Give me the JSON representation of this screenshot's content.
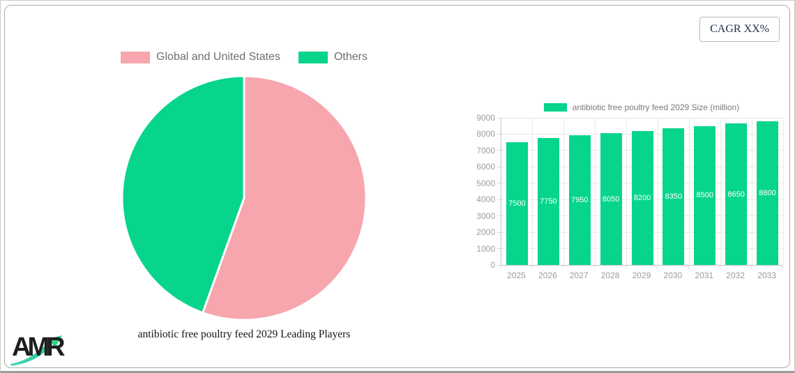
{
  "header": {
    "cagr_label": "CAGR XX%"
  },
  "logo": {
    "text": "AMR"
  },
  "colors": {
    "pink": "#F7A6AE",
    "green": "#07D58B",
    "grid": "#e9e9e9",
    "axis": "#c2c2c2",
    "tick_text": "#9c9c9c",
    "legend_text": "#6e6e6e"
  },
  "chart_data": [
    {
      "type": "pie",
      "title": "antibiotic free poultry feed 2029 Leading Players",
      "labels": [
        "Global and United States",
        "Others"
      ],
      "values": [
        55.5,
        44.5
      ],
      "values_note": "percent share estimated from slice angles",
      "colors": [
        "#F7A6AE",
        "#07D58B"
      ],
      "legend_position": "top",
      "start_angle_deg": 0,
      "slice_border_color": "#ffffff"
    },
    {
      "type": "bar",
      "legend_label": "antibiotic free poultry feed 2029 Size (million)",
      "categories": [
        "2025",
        "2026",
        "2027",
        "2028",
        "2029",
        "2030",
        "2031",
        "2032",
        "2033"
      ],
      "values": [
        7500,
        7750,
        7950,
        8050,
        8200,
        8350,
        8500,
        8650,
        8800
      ],
      "ylim": [
        0,
        9000
      ],
      "ytick_step": 1000,
      "bar_color": "#07D58B",
      "value_label_color": "#ffffff",
      "grid": true,
      "legend_position": "top"
    }
  ]
}
